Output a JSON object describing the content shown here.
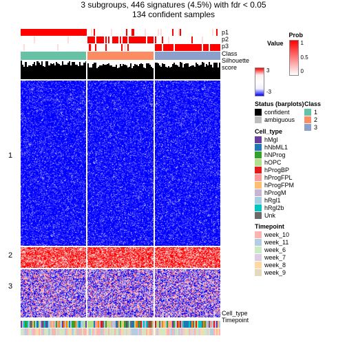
{
  "title": "3 subgroups, 446 signatures (4.5%) with fdr < 0.05",
  "subtitle": "134 confident samples",
  "top_tracks": [
    {
      "name": "p1",
      "height": 10,
      "cols": [
        {
          "c": "#ff0000",
          "r": 0.98
        },
        {
          "c": "#ff0000",
          "r": 0.15
        },
        {
          "c": "#ff0000",
          "r": 0.05
        }
      ]
    },
    {
      "name": "p2",
      "height": 10,
      "cols": [
        {
          "c": "#ff0000",
          "r": 0.02
        },
        {
          "c": "#ff0000",
          "r": 0.85
        },
        {
          "c": "#ff0000",
          "r": 0.08
        }
      ]
    },
    {
      "name": "p3",
      "height": 10,
      "cols": [
        {
          "c": "#ff0000",
          "r": 0.0
        },
        {
          "c": "#ff0000",
          "r": 0.1
        },
        {
          "c": "#ff0000",
          "r": 0.9
        }
      ]
    }
  ],
  "class_track": {
    "name": "Class",
    "colors": [
      "#66c2a5",
      "#fc8d62",
      "#8da0cb"
    ]
  },
  "silhouette": {
    "name": "Silhouette score",
    "heights": [
      0.15,
      0.25,
      0.2
    ]
  },
  "heatmap": {
    "rows": [
      240,
      30,
      70
    ],
    "cols": 3,
    "row_labels": [
      "1",
      "2",
      "3"
    ],
    "bg": "#0000ff",
    "noise": "#ffffff",
    "accent": "#ff0000"
  },
  "bottom_tracks": [
    {
      "name": "Cell_type",
      "palette": [
        "#6a3d9a",
        "#1f78b4",
        "#33a02c",
        "#b2df8a",
        "#e31a1c",
        "#fb9a99",
        "#fdbf6f",
        "#ff7f00",
        "#cab2d6",
        "#a6cee3",
        "#6a6a6a",
        "#00c5c5"
      ]
    },
    {
      "name": "Timepoint",
      "palette": [
        "#fbb4ae",
        "#b3cde3",
        "#ccebc5",
        "#decbe4",
        "#fed9a6",
        "#e5d8bd"
      ]
    }
  ],
  "right_labels": [
    "p1",
    "p2",
    "p3",
    "Class",
    "Silhouette",
    "score"
  ],
  "legends": {
    "prob": {
      "title": "Prob",
      "ticks": [
        "1",
        "0.5",
        "0"
      ]
    },
    "value": {
      "title": "Value",
      "ticks": [
        "3",
        "-3"
      ]
    },
    "status": {
      "title": "Status (barplots)",
      "items": [
        [
          "#000000",
          "confident"
        ],
        [
          "#bdbdbd",
          "ambiguous"
        ]
      ]
    },
    "class": {
      "title": "Class",
      "items": [
        [
          "#66c2a5",
          "1"
        ],
        [
          "#fc8d62",
          "2"
        ],
        [
          "#8da0cb",
          "3"
        ]
      ]
    },
    "cell_type": {
      "title": "Cell_type",
      "items": [
        [
          "#6a3d9a",
          "hMgl"
        ],
        [
          "#1f78b4",
          "hNbML1"
        ],
        [
          "#33a02c",
          "hNProg"
        ],
        [
          "#b2df8a",
          "hOPC"
        ],
        [
          "#e31a1c",
          "hProgBP"
        ],
        [
          "#fb9a99",
          "hProgFPL"
        ],
        [
          "#fdbf6f",
          "hProgFPM"
        ],
        [
          "#cab2d6",
          "hProgM"
        ],
        [
          "#a6cee3",
          "hRgl1"
        ],
        [
          "#00c5c5",
          "hRgl2b"
        ],
        [
          "#6a6a6a",
          "Unk"
        ]
      ]
    },
    "timepoint": {
      "title": "Timepoint",
      "items": [
        [
          "#fbb4ae",
          "week_10"
        ],
        [
          "#b3cde3",
          "week_11"
        ],
        [
          "#ccebc5",
          "week_6"
        ],
        [
          "#decbe4",
          "week_7"
        ],
        [
          "#fed9a6",
          "week_8"
        ],
        [
          "#e5d8bd",
          "week_9"
        ]
      ]
    }
  }
}
